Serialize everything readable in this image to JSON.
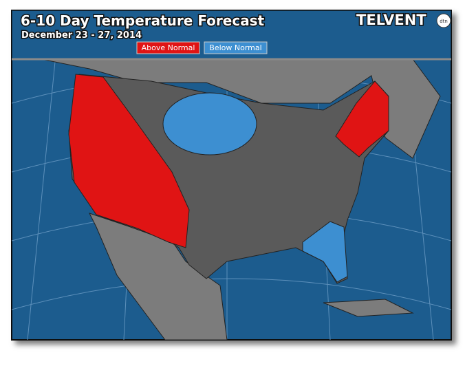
{
  "header": {
    "title": "6-10 Day Temperature Forecast",
    "subtitle": "December 23 - 27, 2014"
  },
  "legend": [
    {
      "label": "Above Normal",
      "color": "#e01414"
    },
    {
      "label": "Below Normal",
      "color": "#3d8fd1"
    }
  ],
  "logo": {
    "name": "TELVENT",
    "badge": "dtn"
  }
}
